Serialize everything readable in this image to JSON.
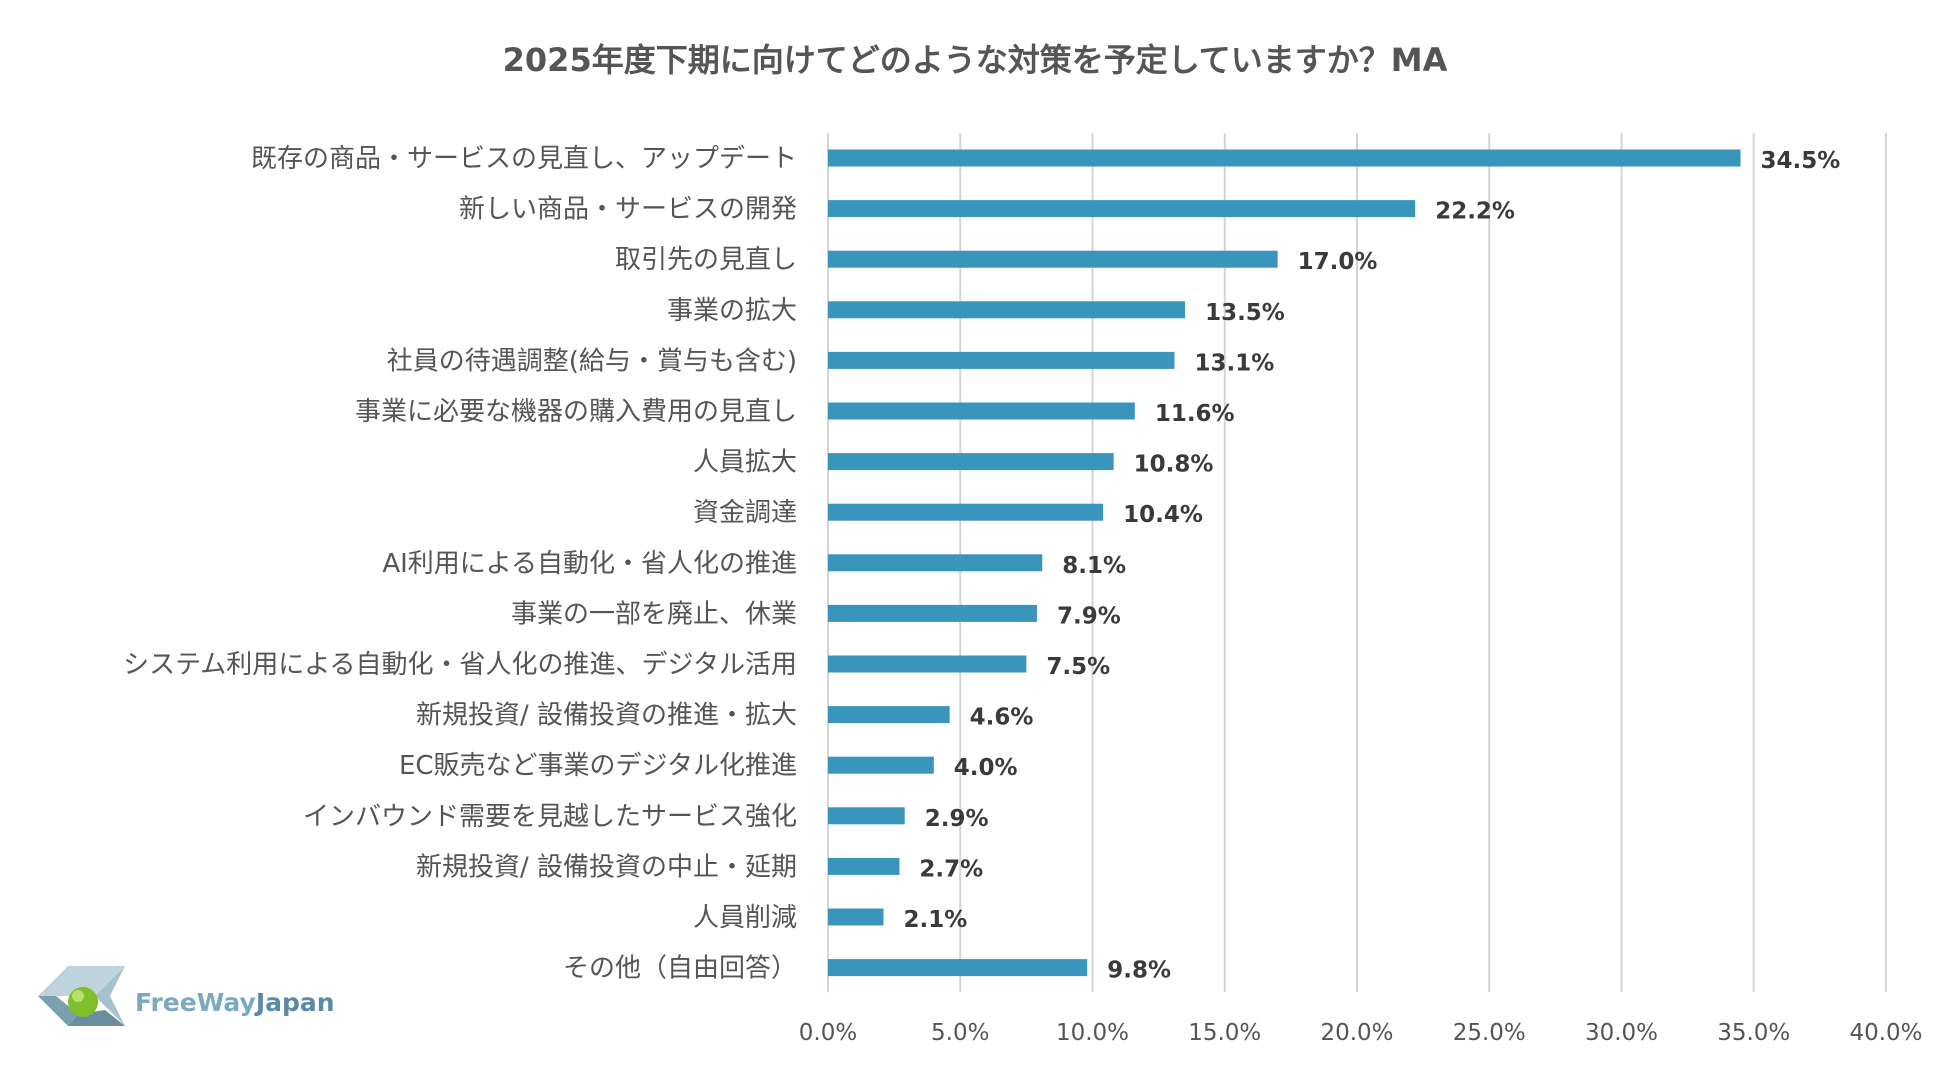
{
  "chart_data": {
    "type": "bar",
    "orientation": "horizontal",
    "title": "2025年度下期に向けてどのような対策を予定していますか？MA",
    "categories": [
      "既存の商品・サービスの見直し、アップデート",
      "新しい商品・サービスの開発",
      "取引先の見直し",
      "事業の拡大",
      "社員の待遇調整(給与・賞与も含む)",
      "事業に必要な機器の購入費用の見直し",
      "人員拡大",
      "資金調達",
      "AI利用による自動化・省人化の推進",
      "事業の一部を廃止、休業",
      "システム利用による自動化・省人化の推進、デジタル活用",
      "新規投資/ 設備投資の推進・拡大",
      "EC販売など事業のデジタル化推進",
      "インバウンド需要を見越したサービス強化",
      "新規投資/ 設備投資の中止・延期",
      "人員削減",
      "その他（自由回答）"
    ],
    "values": [
      34.5,
      22.2,
      17.0,
      13.5,
      13.1,
      11.6,
      10.8,
      10.4,
      8.1,
      7.9,
      7.5,
      4.6,
      4.0,
      2.9,
      2.7,
      2.1,
      9.8
    ],
    "value_labels": [
      "34.5%",
      "22.2%",
      "17.0%",
      "13.5%",
      "13.1%",
      "11.6%",
      "10.8%",
      "10.4%",
      "8.1%",
      "7.9%",
      "7.5%",
      "4.6%",
      "4.0%",
      "2.9%",
      "2.7%",
      "2.1%",
      "9.8%"
    ],
    "xlim": [
      0,
      40
    ],
    "ticks": [
      0,
      5,
      10,
      15,
      20,
      25,
      30,
      35,
      40
    ],
    "tick_labels": [
      "0.0%",
      "5.0%",
      "10.0%",
      "15.0%",
      "20.0%",
      "25.0%",
      "30.0%",
      "35.0%",
      "40.0%"
    ],
    "grid": true,
    "legend": "none",
    "bar_color": "#3a95bd",
    "grid_color": "#d4d4d4"
  },
  "logo": {
    "text_free": "FreeWay",
    "text_japan": "Japan"
  }
}
